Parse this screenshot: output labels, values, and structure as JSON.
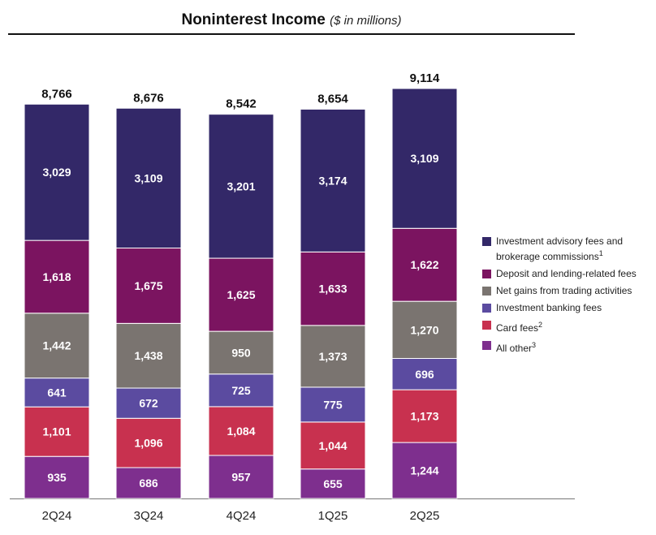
{
  "title": {
    "main": "Noninterest Income",
    "sub": "($ in millions)"
  },
  "chart_data": {
    "type": "bar",
    "stacked": true,
    "categories": [
      "2Q24",
      "3Q24",
      "4Q24",
      "1Q25",
      "2Q25"
    ],
    "totals": [
      "8,766",
      "8,676",
      "8,542",
      "8,654",
      "9,114"
    ],
    "ylim": [
      0,
      9200
    ],
    "series": [
      {
        "name": "All other",
        "footnote": "3",
        "color": "#7e2f8e",
        "values": [
          935,
          686,
          957,
          655,
          1244
        ]
      },
      {
        "name": "Card fees",
        "footnote": "2",
        "color": "#c8314f",
        "values": [
          1101,
          1096,
          1084,
          1044,
          1173
        ]
      },
      {
        "name": "Investment banking fees",
        "footnote": "",
        "color": "#5b4ba0",
        "values": [
          641,
          672,
          725,
          775,
          696
        ]
      },
      {
        "name": "Net gains from trading activities",
        "footnote": "",
        "color": "#7a7470",
        "values": [
          1442,
          1438,
          950,
          1373,
          1270
        ]
      },
      {
        "name": "Deposit and lending-related fees",
        "footnote": "",
        "color": "#7b1460",
        "values": [
          1618,
          1675,
          1625,
          1633,
          1622
        ]
      },
      {
        "name": "Investment advisory fees and brokerage commissions",
        "footnote": "1",
        "color": "#332868",
        "values": [
          3029,
          3109,
          3201,
          3174,
          3109
        ]
      }
    ],
    "legend_order": [
      5,
      4,
      3,
      2,
      1,
      0
    ],
    "legend_position": "right"
  }
}
